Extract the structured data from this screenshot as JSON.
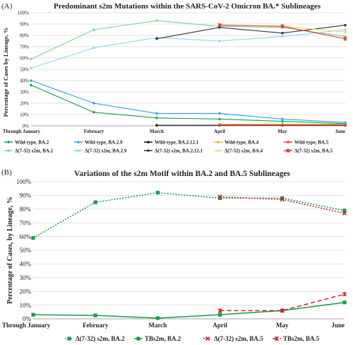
{
  "panels": [
    {
      "panel_label": "(A)",
      "title": "Predominant s2m Mutations within the SARS-CoV-2 Omicron BA.* Sublineages",
      "ylabel": "Percentage of Cases by Lineage, %",
      "legend_position": "bottom"
    },
    {
      "panel_label": "(B)",
      "title": "Variations of the s2m Motif within BA.2 and BA.5 Sublineages",
      "ylabel": "Percentage of Cases, by Lineage, %",
      "legend_position": "bottom"
    }
  ],
  "chart_data": [
    {
      "type": "line",
      "title": "Predominant s2m Mutations within the SARS-CoV-2 Omicron BA.* Sublineages",
      "ylabel": "Percentage of Cases by Lineage, %",
      "categories": [
        "Through January",
        "February",
        "March",
        "April",
        "May",
        "June"
      ],
      "ylim": [
        0,
        100
      ],
      "yticks": [
        "0%",
        "10%",
        "20%",
        "30%",
        "40%",
        "50%",
        "60%",
        "70%",
        "80%",
        "90%",
        "100%"
      ],
      "grid": true,
      "series": [
        {
          "name": "Wild-type, BA.2",
          "color": "#1a9a4a",
          "dash": "",
          "marker": "diamond",
          "values": [
            36,
            12,
            7,
            6,
            4,
            2
          ]
        },
        {
          "name": "Wild-type, BA.2.9",
          "color": "#2ba3d6",
          "dash": "",
          "marker": "diamond",
          "values": [
            40,
            20,
            11,
            11,
            6,
            3
          ]
        },
        {
          "name": "Wild-type, BA.2.12.1",
          "color": "#111111",
          "dash": "",
          "marker": "circle",
          "values": [
            null,
            null,
            0.5,
            0.5,
            0.5,
            0.5
          ]
        },
        {
          "name": "Wild-type, BA.4",
          "color": "#e3b74a",
          "dash": "",
          "marker": "circle",
          "values": [
            null,
            null,
            null,
            1.5,
            1.5,
            1.5
          ]
        },
        {
          "name": "Wild-type, BA.5",
          "color": "#e0402f",
          "dash": "",
          "marker": "circle",
          "values": [
            null,
            null,
            null,
            0.8,
            0.8,
            0.8
          ]
        },
        {
          "name": "Δ(7-32) s2m, BA.2",
          "color": "#79d68d",
          "dash": "",
          "marker": "diamond",
          "values": [
            59,
            85,
            93,
            88,
            87,
            79
          ]
        },
        {
          "name": "Δ(7-32) s2m, BA.2.9",
          "color": "#8fd4f2",
          "dash": "",
          "marker": "diamond",
          "values": [
            51,
            69,
            78,
            75,
            79,
            85
          ]
        },
        {
          "name": "Δ(7-32) s2m, BA.2.12.1",
          "color": "#333333",
          "dash": "",
          "marker": "circle",
          "values": [
            null,
            null,
            77,
            87,
            82,
            89
          ]
        },
        {
          "name": "Δ(7-32) s2m, BA.4",
          "color": "#f2d27a",
          "dash": "",
          "marker": "circle",
          "values": [
            null,
            null,
            null,
            89,
            88,
            83
          ]
        },
        {
          "name": "Δ(7-32) s2m, BA.5",
          "color": "#e0402f",
          "dash": "",
          "marker": "star",
          "values": [
            null,
            null,
            null,
            89,
            88,
            77
          ]
        }
      ]
    },
    {
      "type": "line",
      "title": "Variations of the s2m Motif within BA.2 and BA.5 Sublineages",
      "ylabel": "Percentage of Cases, by Lineage, %",
      "categories": [
        "Through January",
        "February",
        "March",
        "April",
        "May",
        "June"
      ],
      "ylim": [
        0,
        100
      ],
      "yticks": [
        "0%",
        "10%",
        "20%",
        "30%",
        "40%",
        "50%",
        "60%",
        "70%",
        "80%",
        "90%",
        "100%"
      ],
      "grid": true,
      "series": [
        {
          "name": "Δ(7-32) s2m, BA.2",
          "color": "#1a9a4a",
          "dash": "2,2",
          "marker": "square",
          "values": [
            59,
            85,
            92,
            88,
            88,
            79
          ]
        },
        {
          "name": "TBs2m, BA.2",
          "color": "#1a9a4a",
          "dash": "",
          "marker": "square",
          "values": [
            3,
            2.5,
            0.5,
            3,
            6,
            12
          ]
        },
        {
          "name": "Δ(7-32) s2m, BA.5",
          "color": "#c8262a",
          "dash": "2,2",
          "marker": "x",
          "values": [
            null,
            null,
            null,
            89,
            87,
            77
          ]
        },
        {
          "name": "TBs2m, BA.5",
          "color": "#c8262a",
          "dash": "6,4",
          "marker": "star",
          "values": [
            null,
            null,
            null,
            6,
            6,
            18
          ]
        }
      ]
    }
  ]
}
